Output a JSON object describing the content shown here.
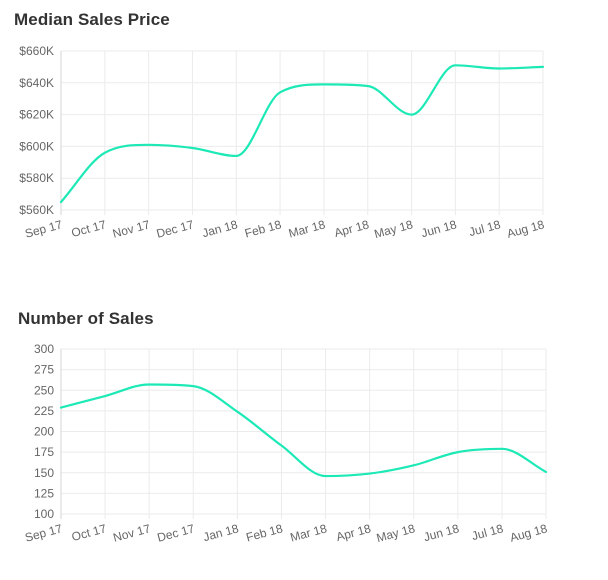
{
  "colors": {
    "line": "#1de9b6",
    "grid": "#ebebeb",
    "text": "#666666"
  },
  "chart_data": [
    {
      "type": "line",
      "title": "Median Sales Price",
      "xlabel": "",
      "ylabel": "",
      "categories": [
        "Sep 17",
        "Oct 17",
        "Nov 17",
        "Dec 17",
        "Jan 18",
        "Feb 18",
        "Mar 18",
        "Apr 18",
        "May 18",
        "Jun 18",
        "Jul 18",
        "Aug 18"
      ],
      "values": [
        565000,
        596000,
        601000,
        599000,
        594000,
        634000,
        639000,
        638000,
        620000,
        651000,
        649000,
        650000
      ],
      "ylim": [
        560000,
        660000
      ],
      "yticks": [
        560000,
        580000,
        600000,
        620000,
        640000,
        660000
      ],
      "ytick_labels": [
        "$560K",
        "$580K",
        "$600K",
        "$620K",
        "$640K",
        "$660K"
      ],
      "grid": true,
      "legend": "none"
    },
    {
      "type": "line",
      "title": "Number of Sales",
      "xlabel": "",
      "ylabel": "",
      "categories": [
        "Sep 17",
        "Oct 17",
        "Nov 17",
        "Dec 17",
        "Jan 18",
        "Feb 18",
        "Mar 18",
        "Apr 18",
        "May 18",
        "Jun 18",
        "Jul 18",
        "Aug 18"
      ],
      "values": [
        229,
        243,
        257,
        255,
        224,
        183,
        146,
        149,
        159,
        175,
        179,
        151
      ],
      "ylim": [
        100,
        300
      ],
      "yticks": [
        100,
        125,
        150,
        175,
        200,
        225,
        250,
        275,
        300
      ],
      "ytick_labels": [
        "100",
        "125",
        "150",
        "175",
        "200",
        "225",
        "250",
        "275",
        "300"
      ],
      "grid": true,
      "legend": "none"
    }
  ]
}
